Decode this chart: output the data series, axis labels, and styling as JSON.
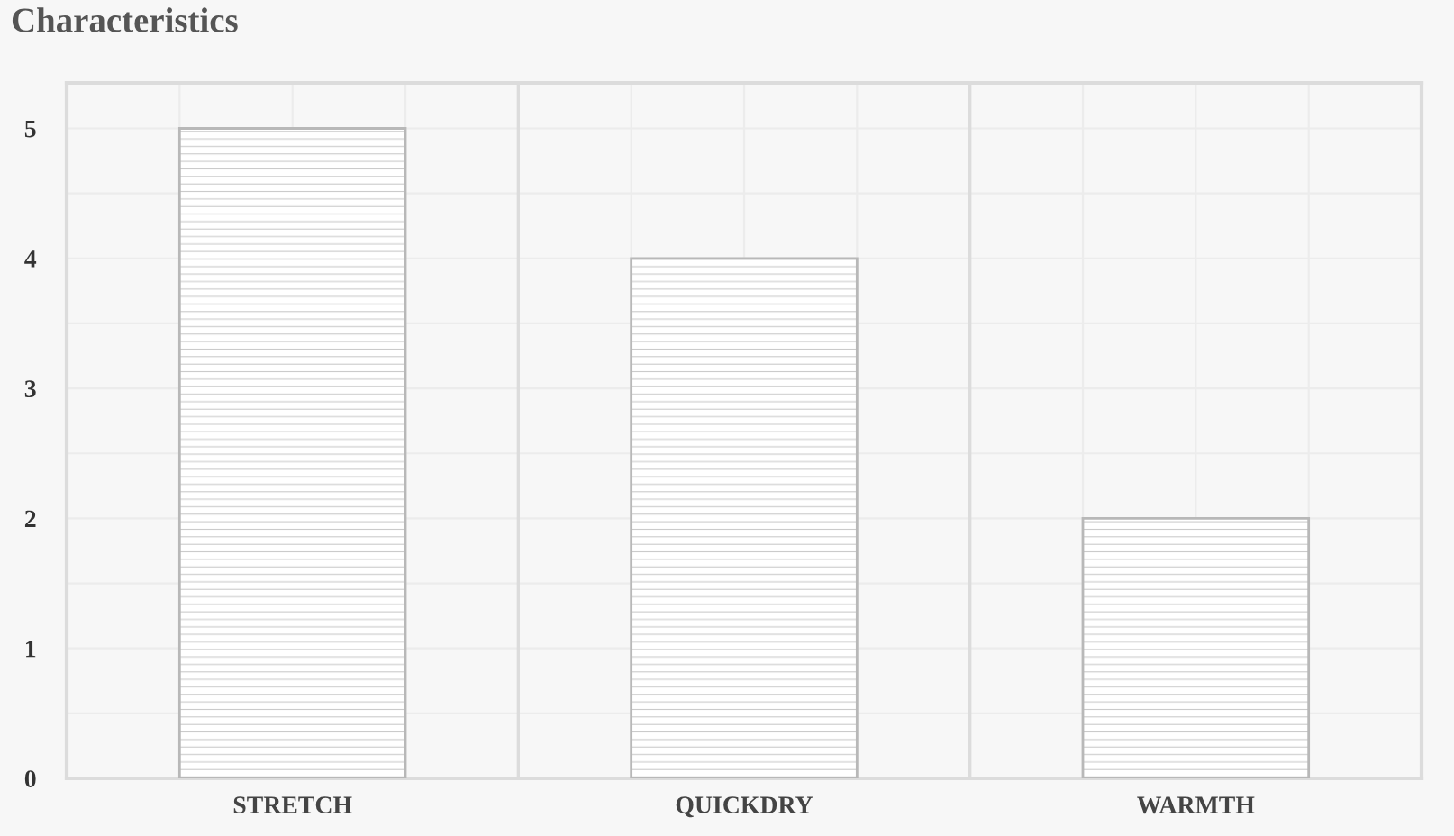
{
  "chart_data": {
    "type": "bar",
    "title": "Characteristics",
    "categories": [
      "STRETCH",
      "QUICKDRY",
      "WARMTH"
    ],
    "values": [
      5,
      4,
      2
    ],
    "color": "#b8b8b8",
    "ylim": [
      0,
      5.35
    ],
    "yticks": [
      0,
      1,
      2,
      3,
      4,
      5
    ],
    "grid": true,
    "legend": false
  }
}
